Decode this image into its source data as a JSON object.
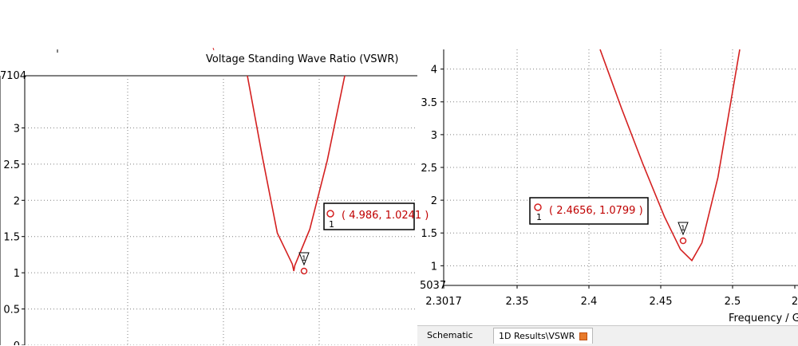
{
  "chart_data": [
    {
      "type": "line",
      "title": "Voltage Standing Wave Ratio (VSWR)",
      "xlabel": "",
      "ylabel": "",
      "y_top_label": "7104",
      "yticks": [
        "3",
        "2.5",
        "2",
        "1.5",
        "1",
        "0.5",
        "0"
      ],
      "ylim": [
        0,
        3.72
      ],
      "grid": true,
      "series": [
        {
          "x": [
            4.8,
            4.86,
            4.92,
            4.98,
            4.986,
            4.99,
            5.05,
            5.12,
            5.19
          ],
          "y": [
            3.72,
            2.6,
            1.55,
            1.12,
            1.0241,
            1.1,
            1.6,
            2.55,
            3.72
          ],
          "color": "#d42020"
        }
      ],
      "marker": {
        "id": "1",
        "x": 4.986,
        "y": 1.0241,
        "label": "( 4.986, 1.0241 )"
      }
    },
    {
      "type": "line",
      "title": "",
      "xlabel": "Frequency / G",
      "ylabel": "",
      "xticks": [
        "2.3017",
        "2.35",
        "2.4",
        "2.45",
        "2.5",
        "2"
      ],
      "yticks": [
        "4",
        "3.5",
        "3",
        "2.5",
        "2",
        "1.5",
        "1"
      ],
      "y_bottom_label": "5037",
      "xlim": [
        2.3017,
        2.55
      ],
      "ylim": [
        0.7,
        4.3
      ],
      "grid": true,
      "series": [
        {
          "x": [
            2.38,
            2.4,
            2.42,
            2.44,
            2.455,
            2.4656,
            2.475,
            2.49,
            2.5103
          ],
          "y": [
            4.3,
            3.4,
            2.55,
            1.75,
            1.25,
            1.0799,
            1.35,
            2.35,
            4.3
          ],
          "color": "#d42020"
        }
      ],
      "marker": {
        "id": "1",
        "x": 2.4656,
        "y": 1.0799,
        "label": "( 2.4656, 1.0799 )"
      }
    }
  ],
  "tabs": {
    "schematic": "Schematic",
    "results": "1D Results\\VSWR"
  }
}
